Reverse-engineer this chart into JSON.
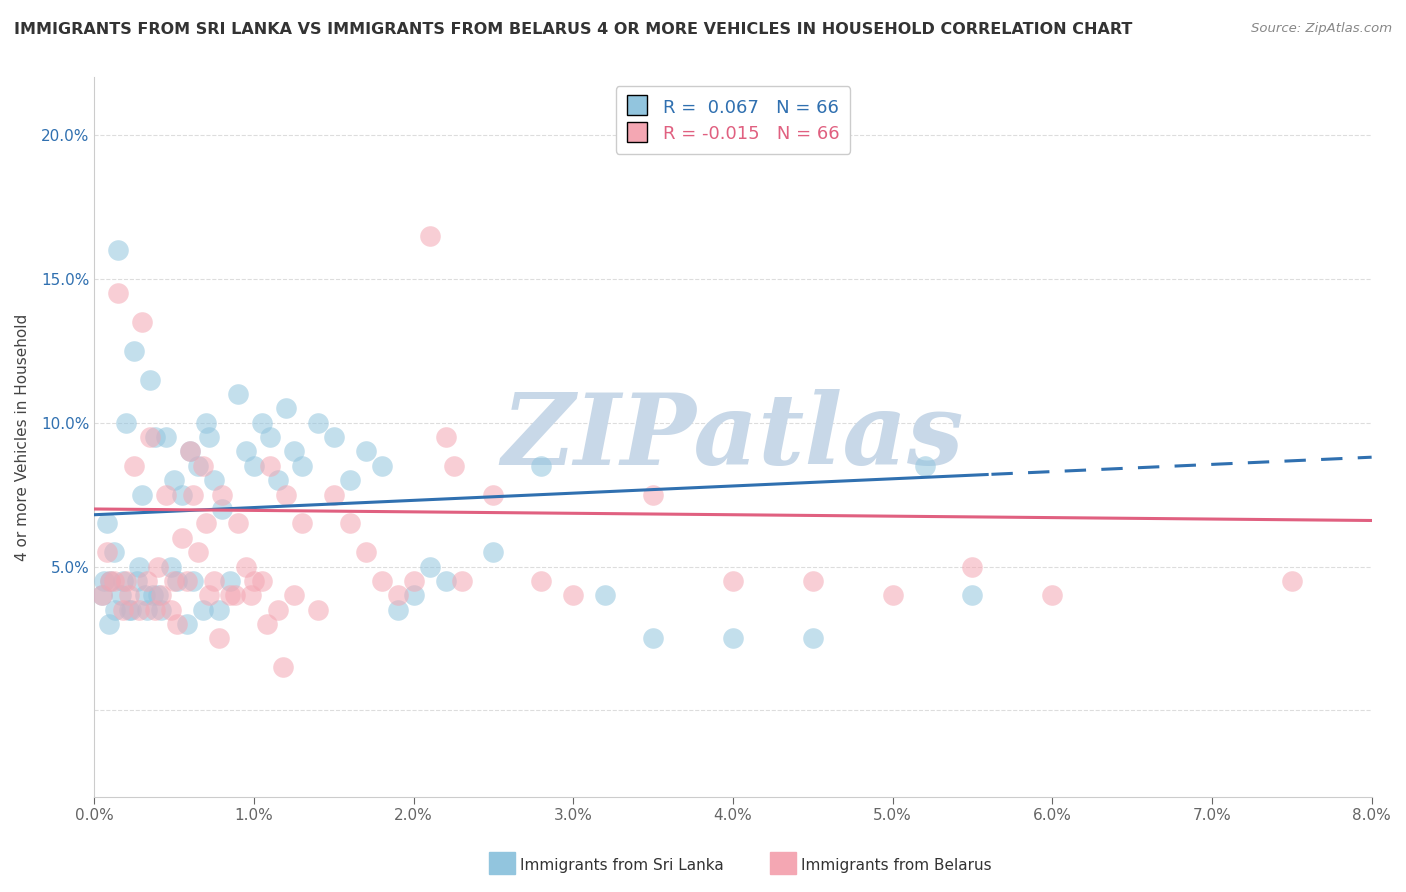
{
  "title": "IMMIGRANTS FROM SRI LANKA VS IMMIGRANTS FROM BELARUS 4 OR MORE VEHICLES IN HOUSEHOLD CORRELATION CHART",
  "source": "Source: ZipAtlas.com",
  "ylabel": "4 or more Vehicles in Household",
  "xlim": [
    0.0,
    8.0
  ],
  "ylim": [
    -3.0,
    22.0
  ],
  "legend_r1": "R =  0.067",
  "legend_n1": "N = 66",
  "legend_r2": "R = -0.015",
  "legend_n2": "N = 66",
  "color_blue": "#92C5DE",
  "color_pink": "#F4A7B3",
  "color_blue_line": "#3070B0",
  "color_pink_line": "#E06080",
  "watermark_text": "ZIPatlas",
  "watermark_color": "#C8D8E8",
  "background_color": "#ffffff",
  "sri_lanka_x": [
    0.05,
    0.08,
    0.1,
    0.12,
    0.15,
    0.18,
    0.2,
    0.22,
    0.25,
    0.28,
    0.3,
    0.32,
    0.35,
    0.38,
    0.4,
    0.42,
    0.45,
    0.48,
    0.5,
    0.52,
    0.55,
    0.58,
    0.6,
    0.62,
    0.65,
    0.68,
    0.7,
    0.72,
    0.75,
    0.78,
    0.8,
    0.85,
    0.9,
    0.95,
    1.0,
    1.05,
    1.1,
    1.15,
    1.2,
    1.25,
    1.3,
    1.4,
    1.5,
    1.6,
    1.7,
    1.8,
    1.9,
    2.0,
    2.1,
    2.2,
    2.5,
    2.8,
    3.2,
    3.5,
    4.0,
    4.5,
    5.2,
    5.5,
    0.06,
    0.09,
    0.13,
    0.17,
    0.23,
    0.27,
    0.33,
    0.37
  ],
  "sri_lanka_y": [
    4.0,
    6.5,
    4.5,
    5.5,
    16.0,
    4.5,
    10.0,
    3.5,
    12.5,
    5.0,
    7.5,
    4.0,
    11.5,
    9.5,
    4.0,
    3.5,
    9.5,
    5.0,
    8.0,
    4.5,
    7.5,
    3.0,
    9.0,
    4.5,
    8.5,
    3.5,
    10.0,
    9.5,
    8.0,
    3.5,
    7.0,
    4.5,
    11.0,
    9.0,
    8.5,
    10.0,
    9.5,
    8.0,
    10.5,
    9.0,
    8.5,
    10.0,
    9.5,
    8.0,
    9.0,
    8.5,
    3.5,
    4.0,
    5.0,
    4.5,
    5.5,
    8.5,
    4.0,
    2.5,
    2.5,
    2.5,
    8.5,
    4.0,
    4.5,
    3.0,
    3.5,
    4.0,
    3.5,
    4.5,
    3.5,
    4.0
  ],
  "belarus_x": [
    0.05,
    0.1,
    0.15,
    0.2,
    0.25,
    0.3,
    0.35,
    0.4,
    0.45,
    0.5,
    0.55,
    0.6,
    0.65,
    0.7,
    0.75,
    0.8,
    0.85,
    0.9,
    0.95,
    1.0,
    1.05,
    1.1,
    1.15,
    1.2,
    1.25,
    1.3,
    1.4,
    1.5,
    1.6,
    1.7,
    1.8,
    1.9,
    2.0,
    2.1,
    2.2,
    2.3,
    2.5,
    2.8,
    3.0,
    3.5,
    4.0,
    4.5,
    5.0,
    5.5,
    6.0,
    7.5,
    0.08,
    0.12,
    0.18,
    0.22,
    0.28,
    0.33,
    0.38,
    0.42,
    0.48,
    0.52,
    0.58,
    0.62,
    0.68,
    0.72,
    0.78,
    0.88,
    0.98,
    1.08,
    1.18,
    2.25
  ],
  "belarus_y": [
    4.0,
    4.5,
    14.5,
    4.5,
    8.5,
    13.5,
    9.5,
    5.0,
    7.5,
    4.5,
    6.0,
    9.0,
    5.5,
    6.5,
    4.5,
    7.5,
    4.0,
    6.5,
    5.0,
    4.5,
    4.5,
    8.5,
    3.5,
    7.5,
    4.0,
    6.5,
    3.5,
    7.5,
    6.5,
    5.5,
    4.5,
    4.0,
    4.5,
    16.5,
    9.5,
    4.5,
    7.5,
    4.5,
    4.0,
    7.5,
    4.5,
    4.5,
    4.0,
    5.0,
    4.0,
    4.5,
    5.5,
    4.5,
    3.5,
    4.0,
    3.5,
    4.5,
    3.5,
    4.0,
    3.5,
    3.0,
    4.5,
    7.5,
    8.5,
    4.0,
    2.5,
    4.0,
    4.0,
    3.0,
    1.5,
    8.5
  ]
}
